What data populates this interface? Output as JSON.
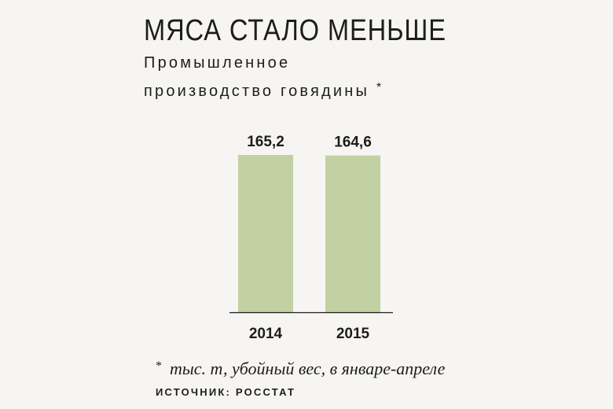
{
  "chart_data": {
    "type": "bar",
    "title": "МЯСА СТАЛО МЕНЬШЕ",
    "subtitle_line1": "Промышленное",
    "subtitle_line2": "производство говядины",
    "subtitle_mark": "*",
    "categories": [
      "2014",
      "2015"
    ],
    "values": [
      165.2,
      164.6
    ],
    "value_labels": [
      "165,2",
      "164,6"
    ],
    "xlabel": "",
    "ylabel": "",
    "ylim": [
      0,
      165.2
    ],
    "grid": false,
    "legend": "none",
    "bar_color": "#c2d1a1",
    "axis_color": "#1d1d1b"
  },
  "footnote": {
    "mark": "*",
    "text": "тыс. т, убойный вес, в январе-апреле"
  },
  "source": "ИСТОЧНИК: РОССТАТ"
}
